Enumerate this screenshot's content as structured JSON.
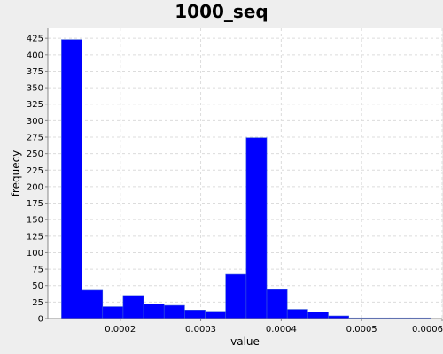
{
  "chart_data": {
    "type": "bar",
    "title": "1000_seq",
    "xlabel": "value",
    "ylabel": "frequecy",
    "xlim": [
      0.00011,
      0.0006
    ],
    "ylim": [
      0,
      440
    ],
    "x_ticks": [
      0.0002,
      0.0003,
      0.0004,
      0.0005,
      0.0006
    ],
    "x_tick_labels": [
      "0.0002",
      "0.0003",
      "0.0004",
      "0.0005",
      "0.0006"
    ],
    "y_ticks": [
      0,
      25,
      50,
      75,
      100,
      125,
      150,
      175,
      200,
      225,
      250,
      275,
      300,
      325,
      350,
      375,
      400,
      425
    ],
    "bar_width": 2.55e-05,
    "bins_start": [
      0.000127,
      0.0001525,
      0.000178,
      0.0002035,
      0.000229,
      0.0002545,
      0.00028,
      0.0003055,
      0.000331,
      0.0003565,
      0.000382,
      0.0004075,
      0.000433,
      0.0004585,
      0.000484,
      0.0005095,
      0.000535,
      0.0005605
    ],
    "values": [
      423,
      43,
      18,
      35,
      22,
      20,
      13,
      11,
      67,
      274,
      44,
      14,
      10,
      4,
      1,
      1,
      1,
      1
    ],
    "bar_color": "#0000ff",
    "grid": true,
    "legend": false
  }
}
